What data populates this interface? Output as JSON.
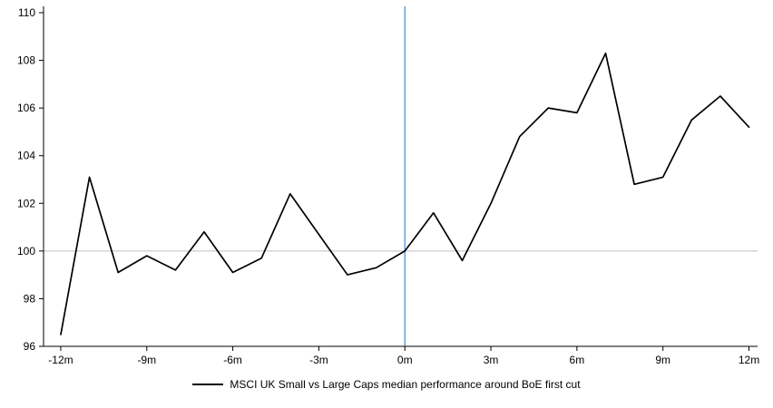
{
  "chart_data": {
    "type": "line",
    "title": "",
    "x": [
      -12,
      -11,
      -10,
      -9,
      -8,
      -7,
      -6,
      -5,
      -4,
      -3,
      -2,
      -1,
      0,
      1,
      2,
      3,
      4,
      5,
      6,
      7,
      8,
      9,
      10,
      11,
      12
    ],
    "series": [
      {
        "name": "MSCI UK Small vs Large Caps median performance around BoE first cut",
        "color": "#000000",
        "values": [
          96.5,
          103.1,
          99.1,
          99.8,
          99.2,
          100.8,
          99.1,
          99.7,
          102.4,
          100.7,
          99.0,
          99.3,
          100.0,
          101.6,
          99.6,
          102.0,
          104.8,
          106.0,
          105.8,
          108.3,
          102.8,
          103.1,
          105.5,
          106.5,
          105.2
        ]
      }
    ],
    "x_ticks": [
      -12,
      -9,
      -6,
      -3,
      0,
      3,
      6,
      9,
      12
    ],
    "x_tick_labels": [
      "-12m",
      "-9m",
      "-6m",
      "-3m",
      "0m",
      "3m",
      "6m",
      "9m",
      "12m"
    ],
    "y_ticks": [
      96,
      98,
      100,
      102,
      104,
      106,
      108,
      110
    ],
    "ylim": [
      96,
      110
    ],
    "xlim": [
      -12.6,
      12.3
    ],
    "grid": "off",
    "legend_position": "bottom",
    "reference_lines": {
      "horizontal": {
        "value": 100,
        "color": "#bfbfbf"
      },
      "vertical": {
        "value": 0,
        "color": "#5b9bd5"
      }
    },
    "axis_color": "#000000"
  }
}
